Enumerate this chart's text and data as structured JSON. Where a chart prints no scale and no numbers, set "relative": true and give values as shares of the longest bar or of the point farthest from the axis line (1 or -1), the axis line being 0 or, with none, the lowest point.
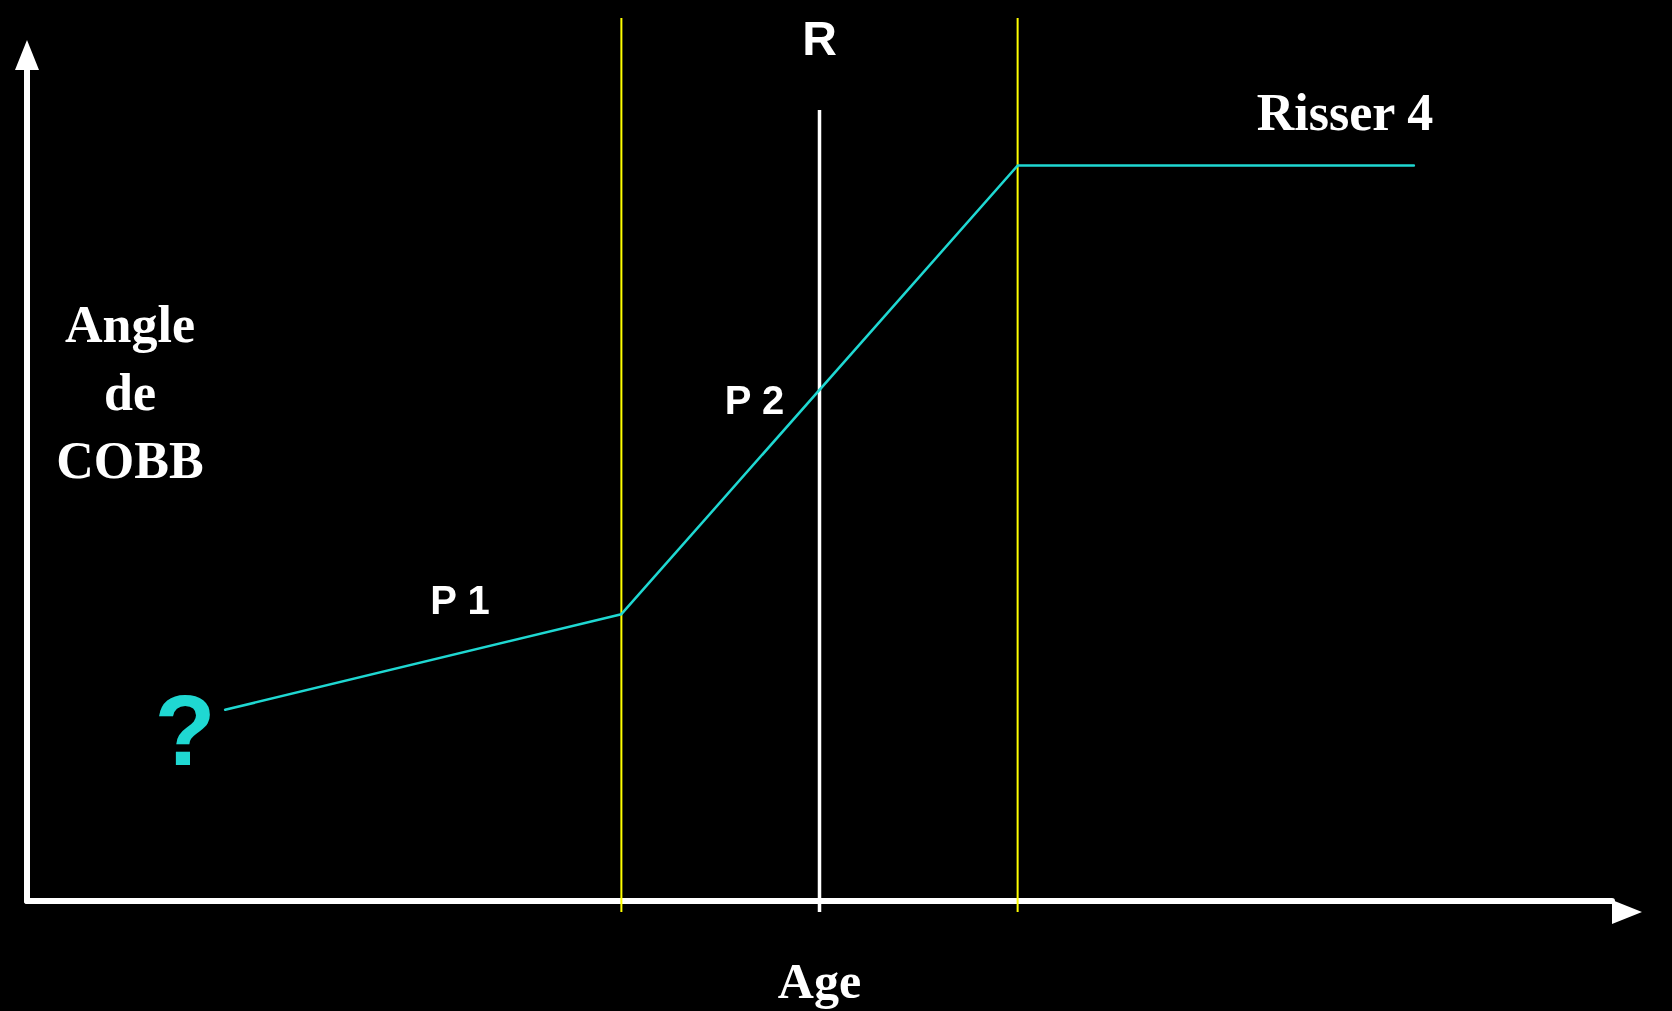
{
  "chart_data": {
    "type": "line",
    "xlabel": "Age",
    "ylabel": "Angle\nde\nCOBB",
    "relative": true,
    "categories": [
      null,
      null,
      null,
      null
    ],
    "series": [
      {
        "color": "#1fd8d2",
        "values": [
          0.26,
          0.39,
          1,
          1
        ]
      }
    ],
    "grid": false,
    "marker": "none",
    "line_style": "solid",
    "annotations": [
      "?",
      "P 1",
      "P 2",
      "Risser 4",
      "R"
    ]
  }
}
